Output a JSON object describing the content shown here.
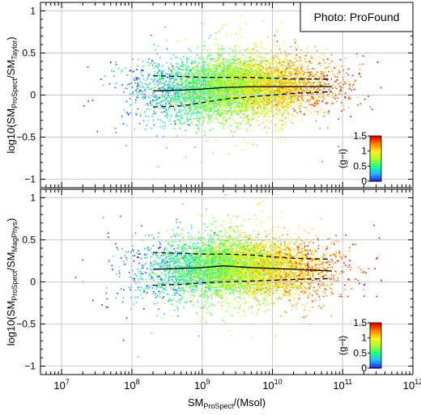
{
  "figure": {
    "legend_text": "Photo: ProFound",
    "colorbar_label": "(g−i)"
  },
  "colors": {
    "colormap": [
      "#2222ee",
      "#22bbff",
      "#22ff88",
      "#aaff22",
      "#ffee22",
      "#ff8800",
      "#ee0000"
    ]
  },
  "chart_data": [
    {
      "type": "scatter",
      "panel": "top",
      "ylabel": {
        "prefix": "log10(SM",
        "sub1": "ProSpect",
        "mid": "/SM",
        "sub2": "Taylor",
        "suffix": ")"
      },
      "xscale": "log",
      "xlim": [
        5000000.0,
        1000000000000.0
      ],
      "ylim": [
        -1.1,
        1.1
      ],
      "grid": true,
      "y_ticks": [
        1,
        0.5,
        0,
        -0.5,
        -1
      ],
      "y_tick_labels": [
        "1",
        "0.5",
        "0",
        "−0.5",
        "−1"
      ],
      "x_ticks": [
        10000000.0,
        100000000.0,
        1000000000.0,
        10000000000.0,
        100000000000.0,
        1000000000000.0
      ],
      "legend_position": "top-right",
      "colorbar": {
        "label": "(g−i)",
        "range": [
          0,
          1.5
        ],
        "ticks": [
          0,
          0.5,
          1,
          1.5
        ],
        "tick_labels": [
          "0",
          "0.5",
          "1",
          "1.5"
        ],
        "position": "bottom-right"
      },
      "median": {
        "x": [
          200000000.0,
          500000000.0,
          1000000000.0,
          2000000000.0,
          5000000000.0,
          10000000000.0,
          20000000000.0,
          70000000000.0
        ],
        "y": [
          0.05,
          0.06,
          0.07,
          0.09,
          0.1,
          0.1,
          0.1,
          0.1
        ]
      },
      "percentile_16": {
        "x": [
          200000000.0,
          500000000.0,
          1000000000.0,
          2000000000.0,
          5000000000.0,
          10000000000.0,
          20000000000.0,
          70000000000.0
        ],
        "y": [
          -0.14,
          -0.13,
          -0.09,
          -0.05,
          -0.02,
          0.0,
          0.02,
          0.04
        ]
      },
      "percentile_84": {
        "x": [
          200000000.0,
          500000000.0,
          1000000000.0,
          2000000000.0,
          5000000000.0,
          10000000000.0,
          20000000000.0,
          70000000000.0
        ],
        "y": [
          0.23,
          0.22,
          0.21,
          0.21,
          0.21,
          0.2,
          0.19,
          0.19
        ]
      }
    },
    {
      "type": "scatter",
      "panel": "bottom",
      "ylabel": {
        "prefix": "log10(SM",
        "sub1": "ProSpect",
        "mid": "/SM",
        "sub2": "MagPhys",
        "suffix": ")"
      },
      "xlabel": {
        "prefix": "SM",
        "sub": "ProSpect",
        "suffix": "/(Msol)"
      },
      "xscale": "log",
      "xlim": [
        5000000.0,
        1000000000000.0
      ],
      "ylim": [
        -1.1,
        1.1
      ],
      "grid": true,
      "y_ticks": [
        1,
        0.5,
        0,
        -0.5,
        -1
      ],
      "y_tick_labels": [
        "1",
        "0.5",
        "0",
        "−0.5",
        "−1"
      ],
      "x_ticks": [
        10000000.0,
        100000000.0,
        1000000000.0,
        10000000000.0,
        100000000000.0,
        1000000000000.0
      ],
      "x_tick_labels": [
        {
          "base": "10",
          "exp": "7"
        },
        {
          "base": "10",
          "exp": "8"
        },
        {
          "base": "10",
          "exp": "9"
        },
        {
          "base": "10",
          "exp": "10"
        },
        {
          "base": "10",
          "exp": "11"
        },
        {
          "base": "10",
          "exp": "12"
        }
      ],
      "colorbar": {
        "label": "(g−i)",
        "range": [
          0,
          1.5
        ],
        "ticks": [
          0,
          0.5,
          1,
          1.5
        ],
        "tick_labels": [
          "0",
          "0.5",
          "1",
          "1.5"
        ],
        "position": "bottom-right"
      },
      "median": {
        "x": [
          200000000.0,
          500000000.0,
          1000000000.0,
          2000000000.0,
          5000000000.0,
          10000000000.0,
          20000000000.0,
          70000000000.0
        ],
        "y": [
          0.15,
          0.16,
          0.17,
          0.19,
          0.17,
          0.16,
          0.15,
          0.13
        ]
      },
      "percentile_16": {
        "x": [
          200000000.0,
          500000000.0,
          1000000000.0,
          2000000000.0,
          5000000000.0,
          10000000000.0,
          20000000000.0,
          70000000000.0
        ],
        "y": [
          -0.04,
          -0.03,
          -0.01,
          0.0,
          0.01,
          0.02,
          0.03,
          0.04
        ]
      },
      "percentile_84": {
        "x": [
          200000000.0,
          500000000.0,
          1000000000.0,
          2000000000.0,
          5000000000.0,
          10000000000.0,
          20000000000.0,
          70000000000.0
        ],
        "y": [
          0.35,
          0.34,
          0.33,
          0.33,
          0.32,
          0.3,
          0.28,
          0.27
        ]
      }
    }
  ]
}
